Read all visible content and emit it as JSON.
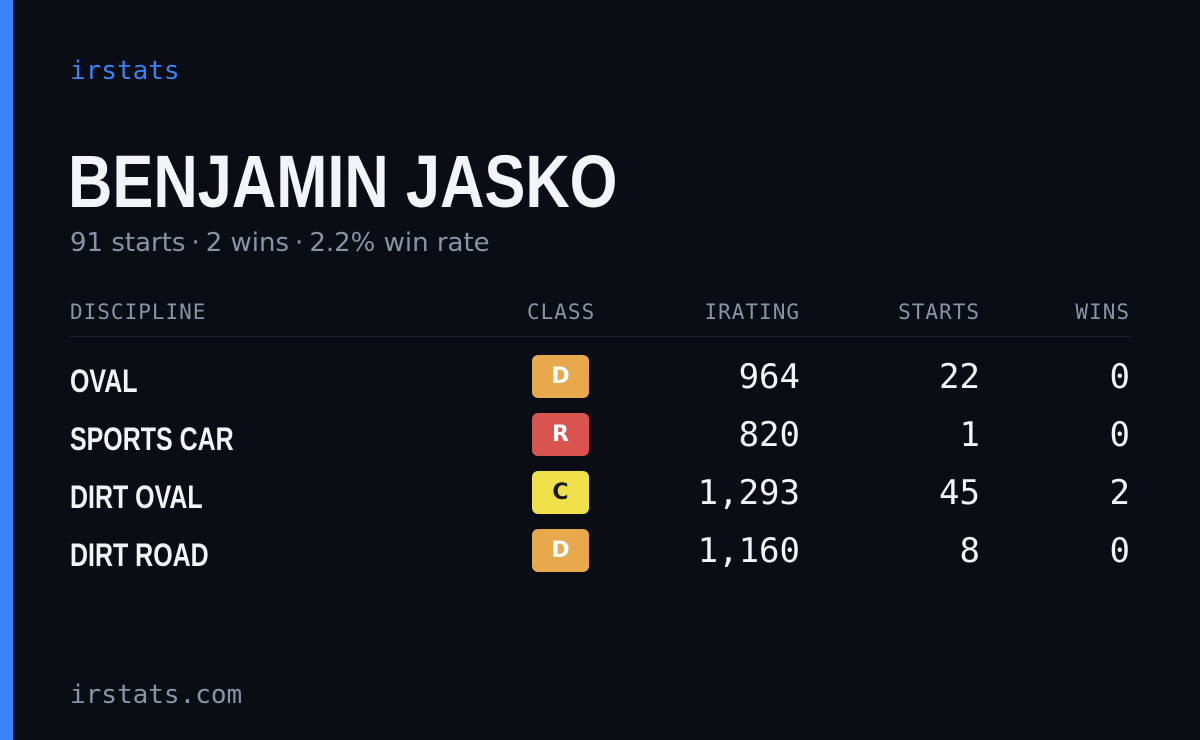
{
  "brand": "irstats",
  "driver": {
    "name": "BENJAMIN JASKO",
    "starts_text": "91 starts",
    "wins_text": "2 wins",
    "win_rate_text": "2.2% win rate",
    "separator": "·"
  },
  "table": {
    "headers": {
      "discipline": "DISCIPLINE",
      "class": "CLASS",
      "irating": "IRATING",
      "starts": "STARTS",
      "wins": "WINS"
    },
    "rows": [
      {
        "discipline": "OVAL",
        "class": "D",
        "class_bg": "#e8a84c",
        "class_fg": "#ffffff",
        "irating": "964",
        "starts": "22",
        "wins": "0"
      },
      {
        "discipline": "SPORTS CAR",
        "class": "R",
        "class_bg": "#d9534f",
        "class_fg": "#ffffff",
        "irating": "820",
        "starts": "1",
        "wins": "0"
      },
      {
        "discipline": "DIRT OVAL",
        "class": "C",
        "class_bg": "#f0e04a",
        "class_fg": "#1a1a1a",
        "irating": "1,293",
        "starts": "45",
        "wins": "2"
      },
      {
        "discipline": "DIRT ROAD",
        "class": "D",
        "class_bg": "#e8a84c",
        "class_fg": "#ffffff",
        "irating": "1,160",
        "starts": "8",
        "wins": "0"
      }
    ]
  },
  "footer": {
    "url": "irstats.com"
  },
  "colors": {
    "accent": "#3b82f6",
    "background": "#0a0d14",
    "text": "#f2f4f8",
    "muted": "#8a93a6"
  }
}
